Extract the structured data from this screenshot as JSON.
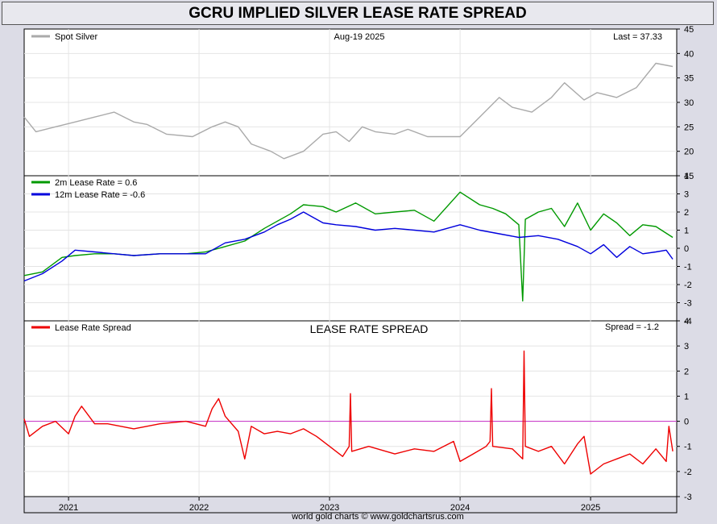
{
  "title": "GCRU IMPLIED SILVER LEASE RATE SPREAD",
  "footer": "world gold charts © www.goldchartsrus.com",
  "chart_data": [
    {
      "type": "line",
      "name": "spot-silver",
      "date_label": "Aug-19  2025",
      "last_label": "Last = 37.33",
      "ylim": [
        15,
        45
      ],
      "yticks": [
        "15",
        "20",
        "25",
        "30",
        "35",
        "40",
        "45"
      ],
      "series": [
        {
          "name": "Spot Silver",
          "color": "#aaaaaa",
          "x": [
            2020.66,
            2020.75,
            2020.9,
            2021.05,
            2021.2,
            2021.35,
            2021.5,
            2021.6,
            2021.75,
            2021.95,
            2022.1,
            2022.2,
            2022.3,
            2022.4,
            2022.55,
            2022.65,
            2022.8,
            2022.95,
            2023.05,
            2023.15,
            2023.25,
            2023.35,
            2023.5,
            2023.6,
            2023.75,
            2023.9,
            2024.0,
            2024.15,
            2024.3,
            2024.4,
            2024.55,
            2024.7,
            2024.8,
            2024.95,
            2025.05,
            2025.2,
            2025.35,
            2025.5,
            2025.63
          ],
          "values": [
            27,
            24,
            25,
            26,
            27,
            28,
            26,
            25.5,
            23.5,
            23,
            25,
            26,
            25,
            21.5,
            20,
            18.5,
            20,
            23.5,
            24,
            22,
            25,
            24,
            23.5,
            24.5,
            23,
            23,
            23,
            27,
            31,
            29,
            28,
            31,
            34,
            30.5,
            32,
            31,
            33,
            38,
            37.33
          ]
        }
      ]
    },
    {
      "type": "line",
      "name": "lease-rates",
      "ylim": [
        -4,
        4
      ],
      "yticks": [
        "-4",
        "-3",
        "-2",
        "-1",
        "0",
        "1",
        "2",
        "3",
        "4"
      ],
      "series": [
        {
          "name": "2m Lease Rate",
          "legend_label": "2m Lease Rate =  0.6",
          "color": "#009900",
          "x": [
            2020.66,
            2020.8,
            2020.95,
            2021.05,
            2021.2,
            2021.35,
            2021.5,
            2021.7,
            2021.9,
            2022.05,
            2022.2,
            2022.35,
            2022.5,
            2022.6,
            2022.7,
            2022.8,
            2022.95,
            2023.05,
            2023.2,
            2023.35,
            2023.5,
            2023.65,
            2023.8,
            2024.0,
            2024.15,
            2024.25,
            2024.35,
            2024.45,
            2024.48,
            2024.5,
            2024.6,
            2024.7,
            2024.8,
            2024.9,
            2025.0,
            2025.1,
            2025.2,
            2025.3,
            2025.4,
            2025.5,
            2025.63
          ],
          "values": [
            -1.5,
            -1.3,
            -0.5,
            -0.4,
            -0.3,
            -0.3,
            -0.4,
            -0.3,
            -0.3,
            -0.2,
            0.1,
            0.4,
            1.1,
            1.5,
            1.9,
            2.4,
            2.3,
            2.0,
            2.5,
            1.9,
            2.0,
            2.1,
            1.5,
            3.1,
            2.4,
            2.2,
            1.9,
            1.3,
            -2.9,
            1.6,
            2.0,
            2.2,
            1.2,
            2.5,
            1.0,
            1.9,
            1.4,
            0.7,
            1.3,
            1.2,
            0.6
          ]
        },
        {
          "name": "12m Lease Rate",
          "legend_label": "12m Lease Rate =  -0.6",
          "color": "#0000dd",
          "x": [
            2020.66,
            2020.8,
            2020.95,
            2021.05,
            2021.2,
            2021.35,
            2021.5,
            2021.7,
            2021.9,
            2022.05,
            2022.2,
            2022.35,
            2022.5,
            2022.6,
            2022.7,
            2022.8,
            2022.95,
            2023.05,
            2023.2,
            2023.35,
            2023.5,
            2023.65,
            2023.8,
            2024.0,
            2024.15,
            2024.3,
            2024.45,
            2024.6,
            2024.75,
            2024.9,
            2025.0,
            2025.1,
            2025.2,
            2025.3,
            2025.4,
            2025.5,
            2025.58,
            2025.63
          ],
          "values": [
            -1.8,
            -1.4,
            -0.7,
            -0.1,
            -0.2,
            -0.3,
            -0.4,
            -0.3,
            -0.3,
            -0.3,
            0.3,
            0.5,
            0.9,
            1.3,
            1.6,
            2.0,
            1.4,
            1.3,
            1.2,
            1.0,
            1.1,
            1.0,
            0.9,
            1.3,
            1.0,
            0.8,
            0.6,
            0.7,
            0.5,
            0.1,
            -0.3,
            0.2,
            -0.5,
            0.1,
            -0.3,
            -0.2,
            -0.1,
            -0.6
          ]
        }
      ]
    },
    {
      "type": "line",
      "name": "lease-rate-spread",
      "panel_title": "LEASE RATE SPREAD",
      "last_label": "Spread = -1.2",
      "ylim": [
        -3,
        4
      ],
      "yticks": [
        "-3",
        "-2",
        "-1",
        "0",
        "1",
        "2",
        "3",
        "4"
      ],
      "reference_line": {
        "value": 0,
        "color": "#cc44cc"
      },
      "series": [
        {
          "name": "Lease Rate Spread",
          "color": "#ee0000",
          "x": [
            2020.66,
            2020.7,
            2020.8,
            2020.9,
            2021.0,
            2021.05,
            2021.1,
            2021.2,
            2021.3,
            2021.5,
            2021.7,
            2021.9,
            2022.05,
            2022.1,
            2022.15,
            2022.2,
            2022.3,
            2022.35,
            2022.4,
            2022.5,
            2022.6,
            2022.7,
            2022.8,
            2022.9,
            2023.0,
            2023.1,
            2023.15,
            2023.16,
            2023.17,
            2023.3,
            2023.5,
            2023.65,
            2023.8,
            2023.95,
            2024.0,
            2024.1,
            2024.2,
            2024.23,
            2024.24,
            2024.25,
            2024.4,
            2024.48,
            2024.49,
            2024.5,
            2024.6,
            2024.7,
            2024.8,
            2024.9,
            2024.95,
            2025.0,
            2025.1,
            2025.2,
            2025.3,
            2025.4,
            2025.5,
            2025.58,
            2025.6,
            2025.63
          ],
          "values": [
            0.1,
            -0.6,
            -0.2,
            0.0,
            -0.5,
            0.2,
            0.6,
            -0.1,
            -0.1,
            -0.3,
            -0.1,
            0.0,
            -0.2,
            0.5,
            0.9,
            0.2,
            -0.4,
            -1.5,
            -0.2,
            -0.5,
            -0.4,
            -0.5,
            -0.3,
            -0.6,
            -1.0,
            -1.4,
            -1.0,
            1.1,
            -1.2,
            -1.0,
            -1.3,
            -1.1,
            -1.2,
            -0.8,
            -1.6,
            -1.3,
            -1.0,
            -0.8,
            1.3,
            -1.0,
            -1.1,
            -1.5,
            2.8,
            -1.0,
            -1.2,
            -1.0,
            -1.7,
            -0.9,
            -0.6,
            -2.1,
            -1.7,
            -1.5,
            -1.3,
            -1.7,
            -1.1,
            -1.6,
            -0.2,
            -1.2
          ]
        }
      ]
    }
  ],
  "x_axis": {
    "range": [
      2020.66,
      2025.66
    ],
    "ticks": [
      {
        "value": 2021.0,
        "label": "2021"
      },
      {
        "value": 2022.0,
        "label": "2022"
      },
      {
        "value": 2023.0,
        "label": "2023"
      },
      {
        "value": 2024.0,
        "label": "2024"
      },
      {
        "value": 2025.0,
        "label": "2025"
      }
    ]
  }
}
